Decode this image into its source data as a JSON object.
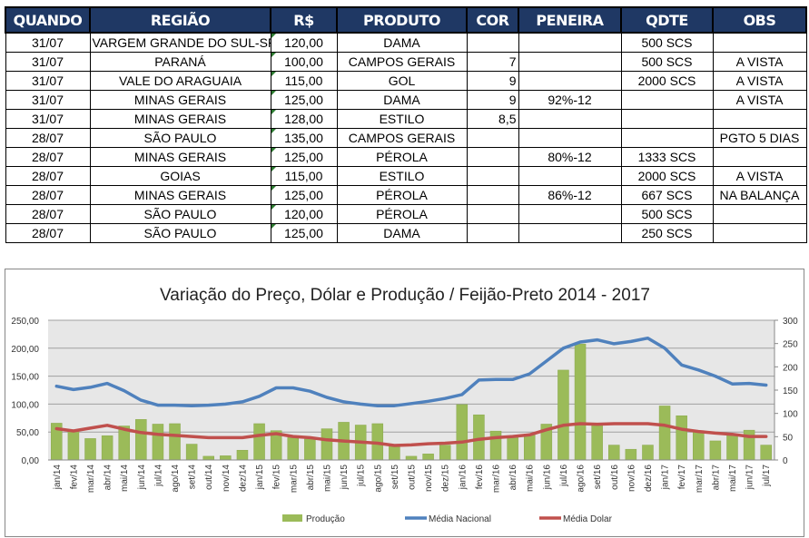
{
  "table": {
    "headers": [
      "QUANDO",
      "REGIÃO",
      "R$",
      "PRODUTO",
      "COR",
      "PENEIRA",
      "QDTE",
      "OBS"
    ],
    "rows": [
      [
        "31/07",
        "VARGEM GRANDE DO SUL-SP",
        "120,00",
        "DAMA",
        "",
        "",
        "500 SCS",
        ""
      ],
      [
        "31/07",
        "PARANÁ",
        "100,00",
        "CAMPOS GERAIS",
        "7",
        "",
        "500 SCS",
        "A VISTA"
      ],
      [
        "31/07",
        "VALE DO ARAGUAIA",
        "115,00",
        "GOL",
        "9",
        "",
        "2000 SCS",
        "A VISTA"
      ],
      [
        "31/07",
        "MINAS GERAIS",
        "125,00",
        "DAMA",
        "9",
        "92%-12",
        "",
        "A VISTA"
      ],
      [
        "31/07",
        "MINAS GERAIS",
        "128,00",
        "ESTILO",
        "8,5",
        "",
        "",
        ""
      ],
      [
        "28/07",
        "SÃO PAULO",
        "135,00",
        "CAMPOS GERAIS",
        "",
        "",
        "",
        "PGTO 5 DIAS"
      ],
      [
        "28/07",
        "MINAS GERAIS",
        "125,00",
        "PÉROLA",
        "",
        "80%-12",
        "1333 SCS",
        ""
      ],
      [
        "28/07",
        "GOIAS",
        "115,00",
        "ESTILO",
        "",
        "",
        "2000 SCS",
        "A VISTA"
      ],
      [
        "28/07",
        "MINAS GERAIS",
        "125,00",
        "PÉROLA",
        "",
        "86%-12",
        "667 SCS",
        "NA BALANÇA"
      ],
      [
        "28/07",
        "SÃO PAULO",
        "120,00",
        "PÉROLA",
        "",
        "",
        "500 SCS",
        ""
      ],
      [
        "28/07",
        "SÃO PAULO",
        "125,00",
        "DAMA",
        "",
        "",
        "250 SCS",
        ""
      ]
    ]
  },
  "chart_data": {
    "type": "bar+line",
    "title": "Variação do Preço, Dólar e Produção / Feijão-Preto 2014 - 2017",
    "categories": [
      "jan/14",
      "fev/14",
      "mar/14",
      "abr/14",
      "mai/14",
      "jun/14",
      "jul/14",
      "ago/14",
      "set/14",
      "out/14",
      "nov/14",
      "dez/14",
      "jan/15",
      "fev/15",
      "mar/15",
      "abr/15",
      "mai/15",
      "jun/15",
      "jul/15",
      "ago/15",
      "set/15",
      "out/15",
      "nov/15",
      "dez/15",
      "jan/16",
      "fev/16",
      "mar/16",
      "abr/16",
      "mai/16",
      "jun/16",
      "jul/16",
      "ago/16",
      "set/16",
      "out/16",
      "nov/16",
      "dez/16",
      "jan/17",
      "fev/17",
      "mar/17",
      "abr/17",
      "mai/17",
      "jun/17",
      "jul/17"
    ],
    "y_left": {
      "range": [
        0,
        250
      ],
      "ticks": [
        "0,00",
        "50,00",
        "100,00",
        "150,00",
        "200,00",
        "250,00"
      ]
    },
    "y_right": {
      "range": [
        0,
        300
      ],
      "ticks": [
        "0",
        "50",
        "100",
        "150",
        "200",
        "250",
        "300"
      ]
    },
    "series": [
      {
        "name": "Produção",
        "kind": "bar",
        "axis": "right",
        "color": "#9bbb59",
        "values": [
          79,
          62,
          46,
          52,
          73,
          87,
          77,
          78,
          34,
          8,
          9,
          21,
          78,
          63,
          48,
          45,
          67,
          81,
          75,
          78,
          30,
          8,
          13,
          32,
          119,
          97,
          62,
          50,
          56,
          77,
          193,
          249,
          79,
          32,
          23,
          32,
          116,
          95,
          63,
          41,
          53,
          64,
          32
        ]
      },
      {
        "name": "Média Nacional",
        "kind": "line",
        "axis": "left",
        "color": "#4f81bd",
        "values": [
          132,
          126,
          130,
          137,
          124,
          107,
          98,
          98,
          97,
          98,
          100,
          104,
          114,
          129,
          129,
          123,
          112,
          104,
          100,
          97,
          97,
          101,
          105,
          110,
          117,
          143,
          144,
          144,
          154,
          177,
          200,
          211,
          215,
          208,
          212,
          218,
          200,
          170,
          161,
          150,
          136,
          137,
          134
        ]
      },
      {
        "name": "Média Dolar",
        "kind": "line",
        "axis": "left",
        "color": "#c0504d",
        "values": [
          56,
          52,
          57,
          62,
          55,
          49,
          46,
          44,
          42,
          40,
          40,
          40,
          44,
          47,
          42,
          40,
          36,
          34,
          32,
          30,
          26,
          27,
          29,
          30,
          32,
          37,
          40,
          42,
          45,
          54,
          62,
          65,
          64,
          65,
          65,
          65,
          62,
          55,
          51,
          48,
          46,
          42,
          42
        ]
      }
    ],
    "grid": true,
    "legend": "bottom"
  }
}
